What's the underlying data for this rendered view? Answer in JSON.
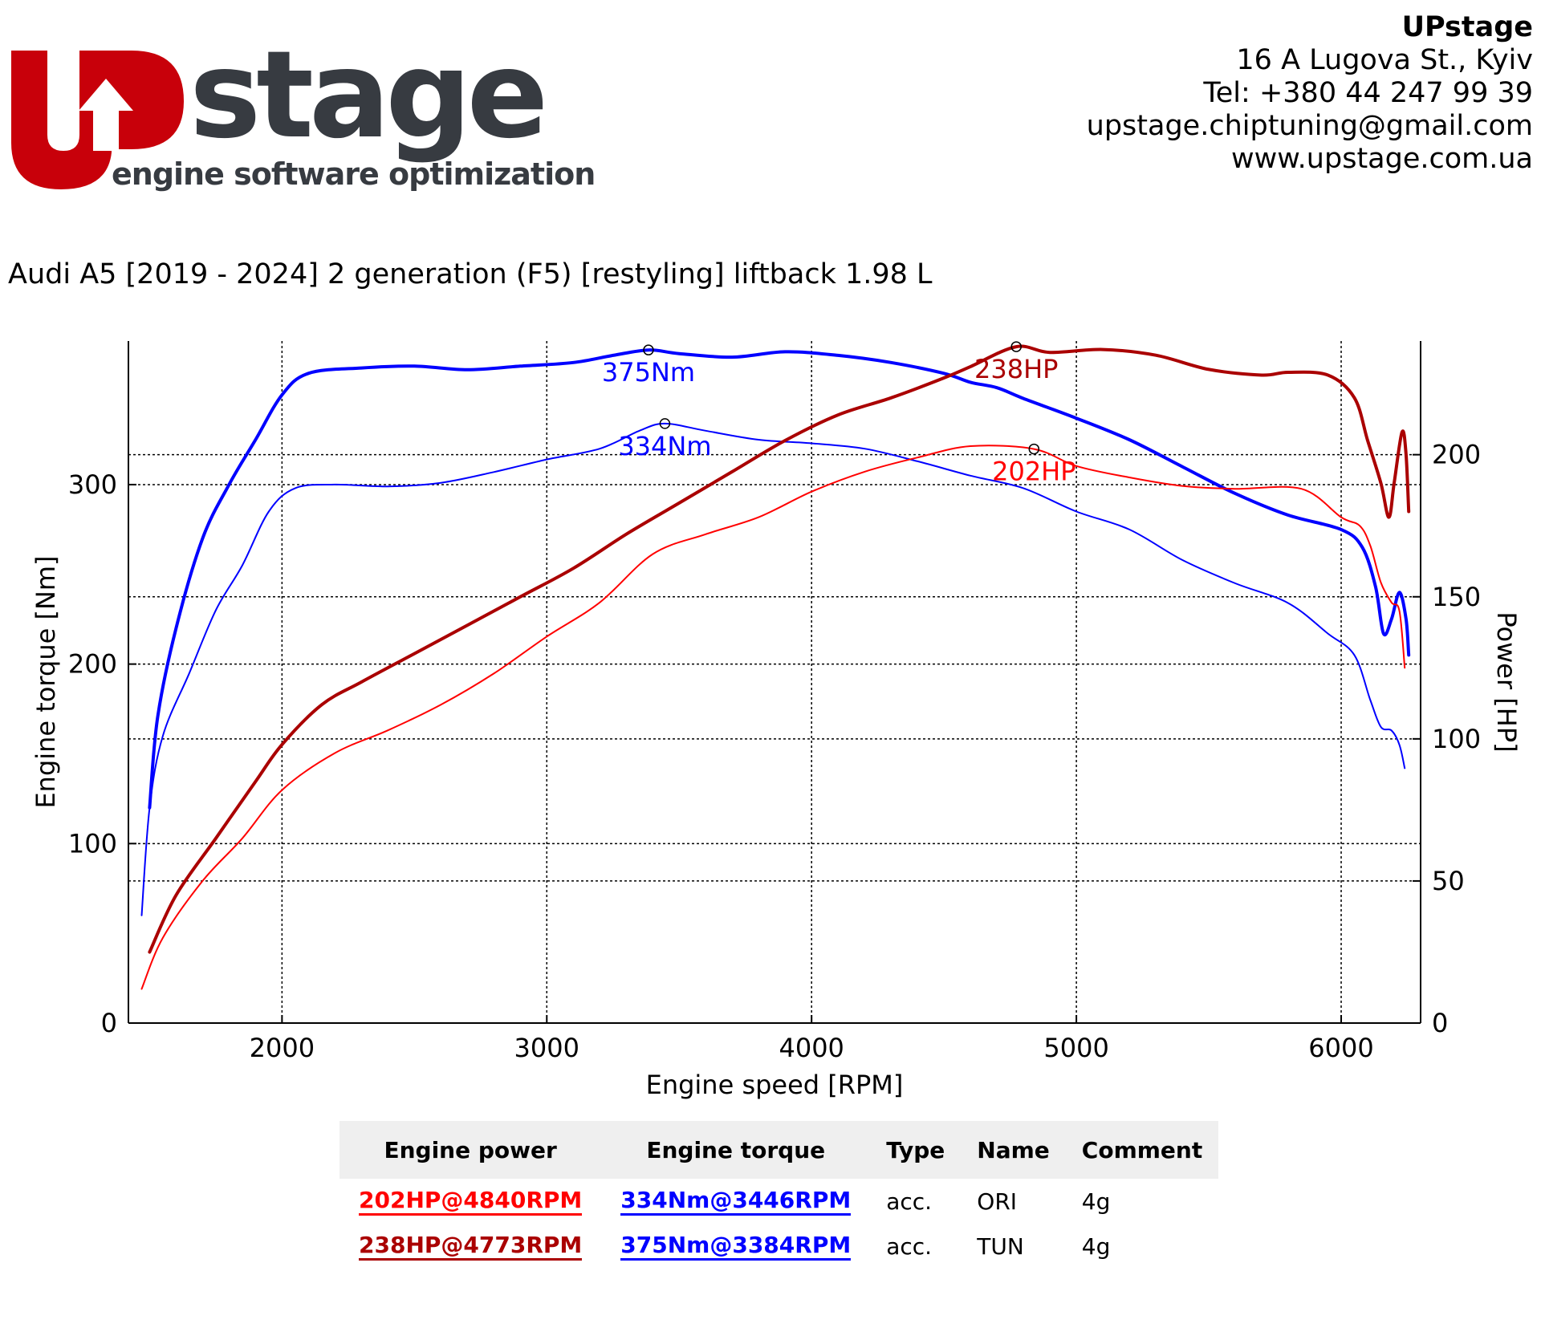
{
  "header": {
    "logo_text": "stage",
    "logo_tagline": "engine software optimization",
    "company": "UPstage",
    "address": "16 A Lugova St., Kyiv",
    "phone": "Tel: +380 44 247 99 39",
    "email": "upstage.chiptuning@gmail.com",
    "website": "www.upstage.com.ua"
  },
  "vehicle_title": "Audi A5 [2019 - 2024] 2 generation (F5) [restyling] liftback 1.98 L",
  "colors": {
    "logo_red": "#c8000a",
    "logo_gray": "#373b41",
    "ori_power": "#ff0000",
    "tun_power": "#aa0000",
    "torque": "#0000ff"
  },
  "chart_data": {
    "type": "line",
    "xlabel": "Engine speed [RPM]",
    "ylabel_left": "Engine torque [Nm]",
    "ylabel_right": "Power [HP]",
    "xlim": [
      1420,
      6300
    ],
    "ylim_left": [
      0,
      380
    ],
    "ylim_right": [
      0,
      240
    ],
    "x_ticks": [
      2000,
      3000,
      4000,
      5000,
      6000
    ],
    "y_ticks_left": [
      0,
      100,
      200,
      300
    ],
    "y_ticks_right": [
      0,
      50,
      100,
      150,
      200
    ],
    "grid": true,
    "grid_style": "dotted",
    "series": [
      {
        "name": "ORI torque",
        "axis": "left",
        "color": "#0000ff",
        "width": 2,
        "points": [
          [
            1470,
            60
          ],
          [
            1500,
            120
          ],
          [
            1550,
            160
          ],
          [
            1650,
            195
          ],
          [
            1750,
            230
          ],
          [
            1850,
            255
          ],
          [
            1950,
            285
          ],
          [
            2050,
            298
          ],
          [
            2200,
            300
          ],
          [
            2400,
            299
          ],
          [
            2600,
            301
          ],
          [
            2800,
            307
          ],
          [
            3000,
            314
          ],
          [
            3200,
            320
          ],
          [
            3350,
            330
          ],
          [
            3446,
            334
          ],
          [
            3600,
            330
          ],
          [
            3800,
            325
          ],
          [
            4000,
            323
          ],
          [
            4200,
            320
          ],
          [
            4400,
            313
          ],
          [
            4600,
            305
          ],
          [
            4800,
            298
          ],
          [
            5000,
            285
          ],
          [
            5200,
            275
          ],
          [
            5400,
            258
          ],
          [
            5600,
            245
          ],
          [
            5800,
            234
          ],
          [
            5950,
            217
          ],
          [
            6050,
            205
          ],
          [
            6110,
            180
          ],
          [
            6150,
            165
          ],
          [
            6190,
            163
          ],
          [
            6220,
            155
          ],
          [
            6240,
            142
          ]
        ],
        "peak_label": "334Nm",
        "peak": [
          3446,
          334
        ]
      },
      {
        "name": "TUN torque",
        "axis": "left",
        "color": "#0000ff",
        "width": 4,
        "points": [
          [
            1500,
            120
          ],
          [
            1530,
            170
          ],
          [
            1600,
            220
          ],
          [
            1700,
            270
          ],
          [
            1800,
            300
          ],
          [
            1900,
            325
          ],
          [
            2000,
            350
          ],
          [
            2100,
            362
          ],
          [
            2300,
            365
          ],
          [
            2500,
            366
          ],
          [
            2700,
            364
          ],
          [
            2900,
            366
          ],
          [
            3100,
            368
          ],
          [
            3250,
            372
          ],
          [
            3384,
            375
          ],
          [
            3500,
            373
          ],
          [
            3700,
            371
          ],
          [
            3900,
            374
          ],
          [
            4100,
            372
          ],
          [
            4300,
            368
          ],
          [
            4500,
            362
          ],
          [
            4600,
            357
          ],
          [
            4700,
            354
          ],
          [
            4800,
            348
          ],
          [
            5000,
            337
          ],
          [
            5200,
            325
          ],
          [
            5400,
            310
          ],
          [
            5600,
            295
          ],
          [
            5800,
            283
          ],
          [
            6000,
            275
          ],
          [
            6080,
            265
          ],
          [
            6130,
            243
          ],
          [
            6160,
            217
          ],
          [
            6190,
            225
          ],
          [
            6220,
            240
          ],
          [
            6245,
            225
          ],
          [
            6255,
            205
          ]
        ],
        "peak_label": "375Nm",
        "peak": [
          3384,
          375
        ]
      },
      {
        "name": "ORI power",
        "axis": "right",
        "color": "#ff0000",
        "width": 2,
        "points": [
          [
            1470,
            12
          ],
          [
            1550,
            30
          ],
          [
            1700,
            50
          ],
          [
            1850,
            65
          ],
          [
            2000,
            82
          ],
          [
            2200,
            95
          ],
          [
            2400,
            103
          ],
          [
            2600,
            112
          ],
          [
            2800,
            123
          ],
          [
            3000,
            136
          ],
          [
            3200,
            148
          ],
          [
            3400,
            165
          ],
          [
            3600,
            172
          ],
          [
            3800,
            178
          ],
          [
            4000,
            187
          ],
          [
            4200,
            194
          ],
          [
            4400,
            199
          ],
          [
            4600,
            203
          ],
          [
            4840,
            202
          ],
          [
            5000,
            196
          ],
          [
            5200,
            192
          ],
          [
            5400,
            189
          ],
          [
            5600,
            188
          ],
          [
            5850,
            188
          ],
          [
            6000,
            178
          ],
          [
            6070,
            175
          ],
          [
            6110,
            168
          ],
          [
            6150,
            155
          ],
          [
            6190,
            148
          ],
          [
            6220,
            145
          ],
          [
            6240,
            125
          ]
        ],
        "peak_label": "202HP",
        "peak": [
          4840,
          202
        ]
      },
      {
        "name": "TUN power",
        "axis": "right",
        "color": "#aa0000",
        "width": 4,
        "points": [
          [
            1500,
            25
          ],
          [
            1600,
            45
          ],
          [
            1750,
            65
          ],
          [
            1900,
            85
          ],
          [
            2000,
            98
          ],
          [
            2150,
            112
          ],
          [
            2300,
            120
          ],
          [
            2500,
            130
          ],
          [
            2700,
            140
          ],
          [
            2900,
            150
          ],
          [
            3100,
            160
          ],
          [
            3300,
            172
          ],
          [
            3500,
            183
          ],
          [
            3700,
            194
          ],
          [
            3900,
            205
          ],
          [
            4100,
            214
          ],
          [
            4300,
            220
          ],
          [
            4500,
            227
          ],
          [
            4600,
            231
          ],
          [
            4773,
            238
          ],
          [
            4900,
            236
          ],
          [
            5100,
            237
          ],
          [
            5300,
            235
          ],
          [
            5500,
            230
          ],
          [
            5700,
            228
          ],
          [
            5800,
            229
          ],
          [
            5950,
            228
          ],
          [
            6050,
            220
          ],
          [
            6100,
            205
          ],
          [
            6150,
            190
          ],
          [
            6180,
            178
          ],
          [
            6200,
            190
          ],
          [
            6230,
            208
          ],
          [
            6245,
            200
          ],
          [
            6255,
            180
          ]
        ],
        "peak_label": "238HP",
        "peak": [
          4773,
          238
        ]
      }
    ],
    "table": {
      "headers": [
        "Engine power",
        "Engine torque",
        "Type",
        "Name",
        "Comment"
      ],
      "rows": [
        {
          "power": "202HP@4840RPM",
          "torque": "334Nm@3446RPM",
          "type": "acc.",
          "name": "ORI",
          "comment": "4g",
          "power_color": "#ff0000",
          "torque_color": "#0000ff"
        },
        {
          "power": "238HP@4773RPM",
          "torque": "375Nm@3384RPM",
          "type": "acc.",
          "name": "TUN",
          "comment": "4g",
          "power_color": "#aa0000",
          "torque_color": "#0000ff"
        }
      ]
    }
  }
}
